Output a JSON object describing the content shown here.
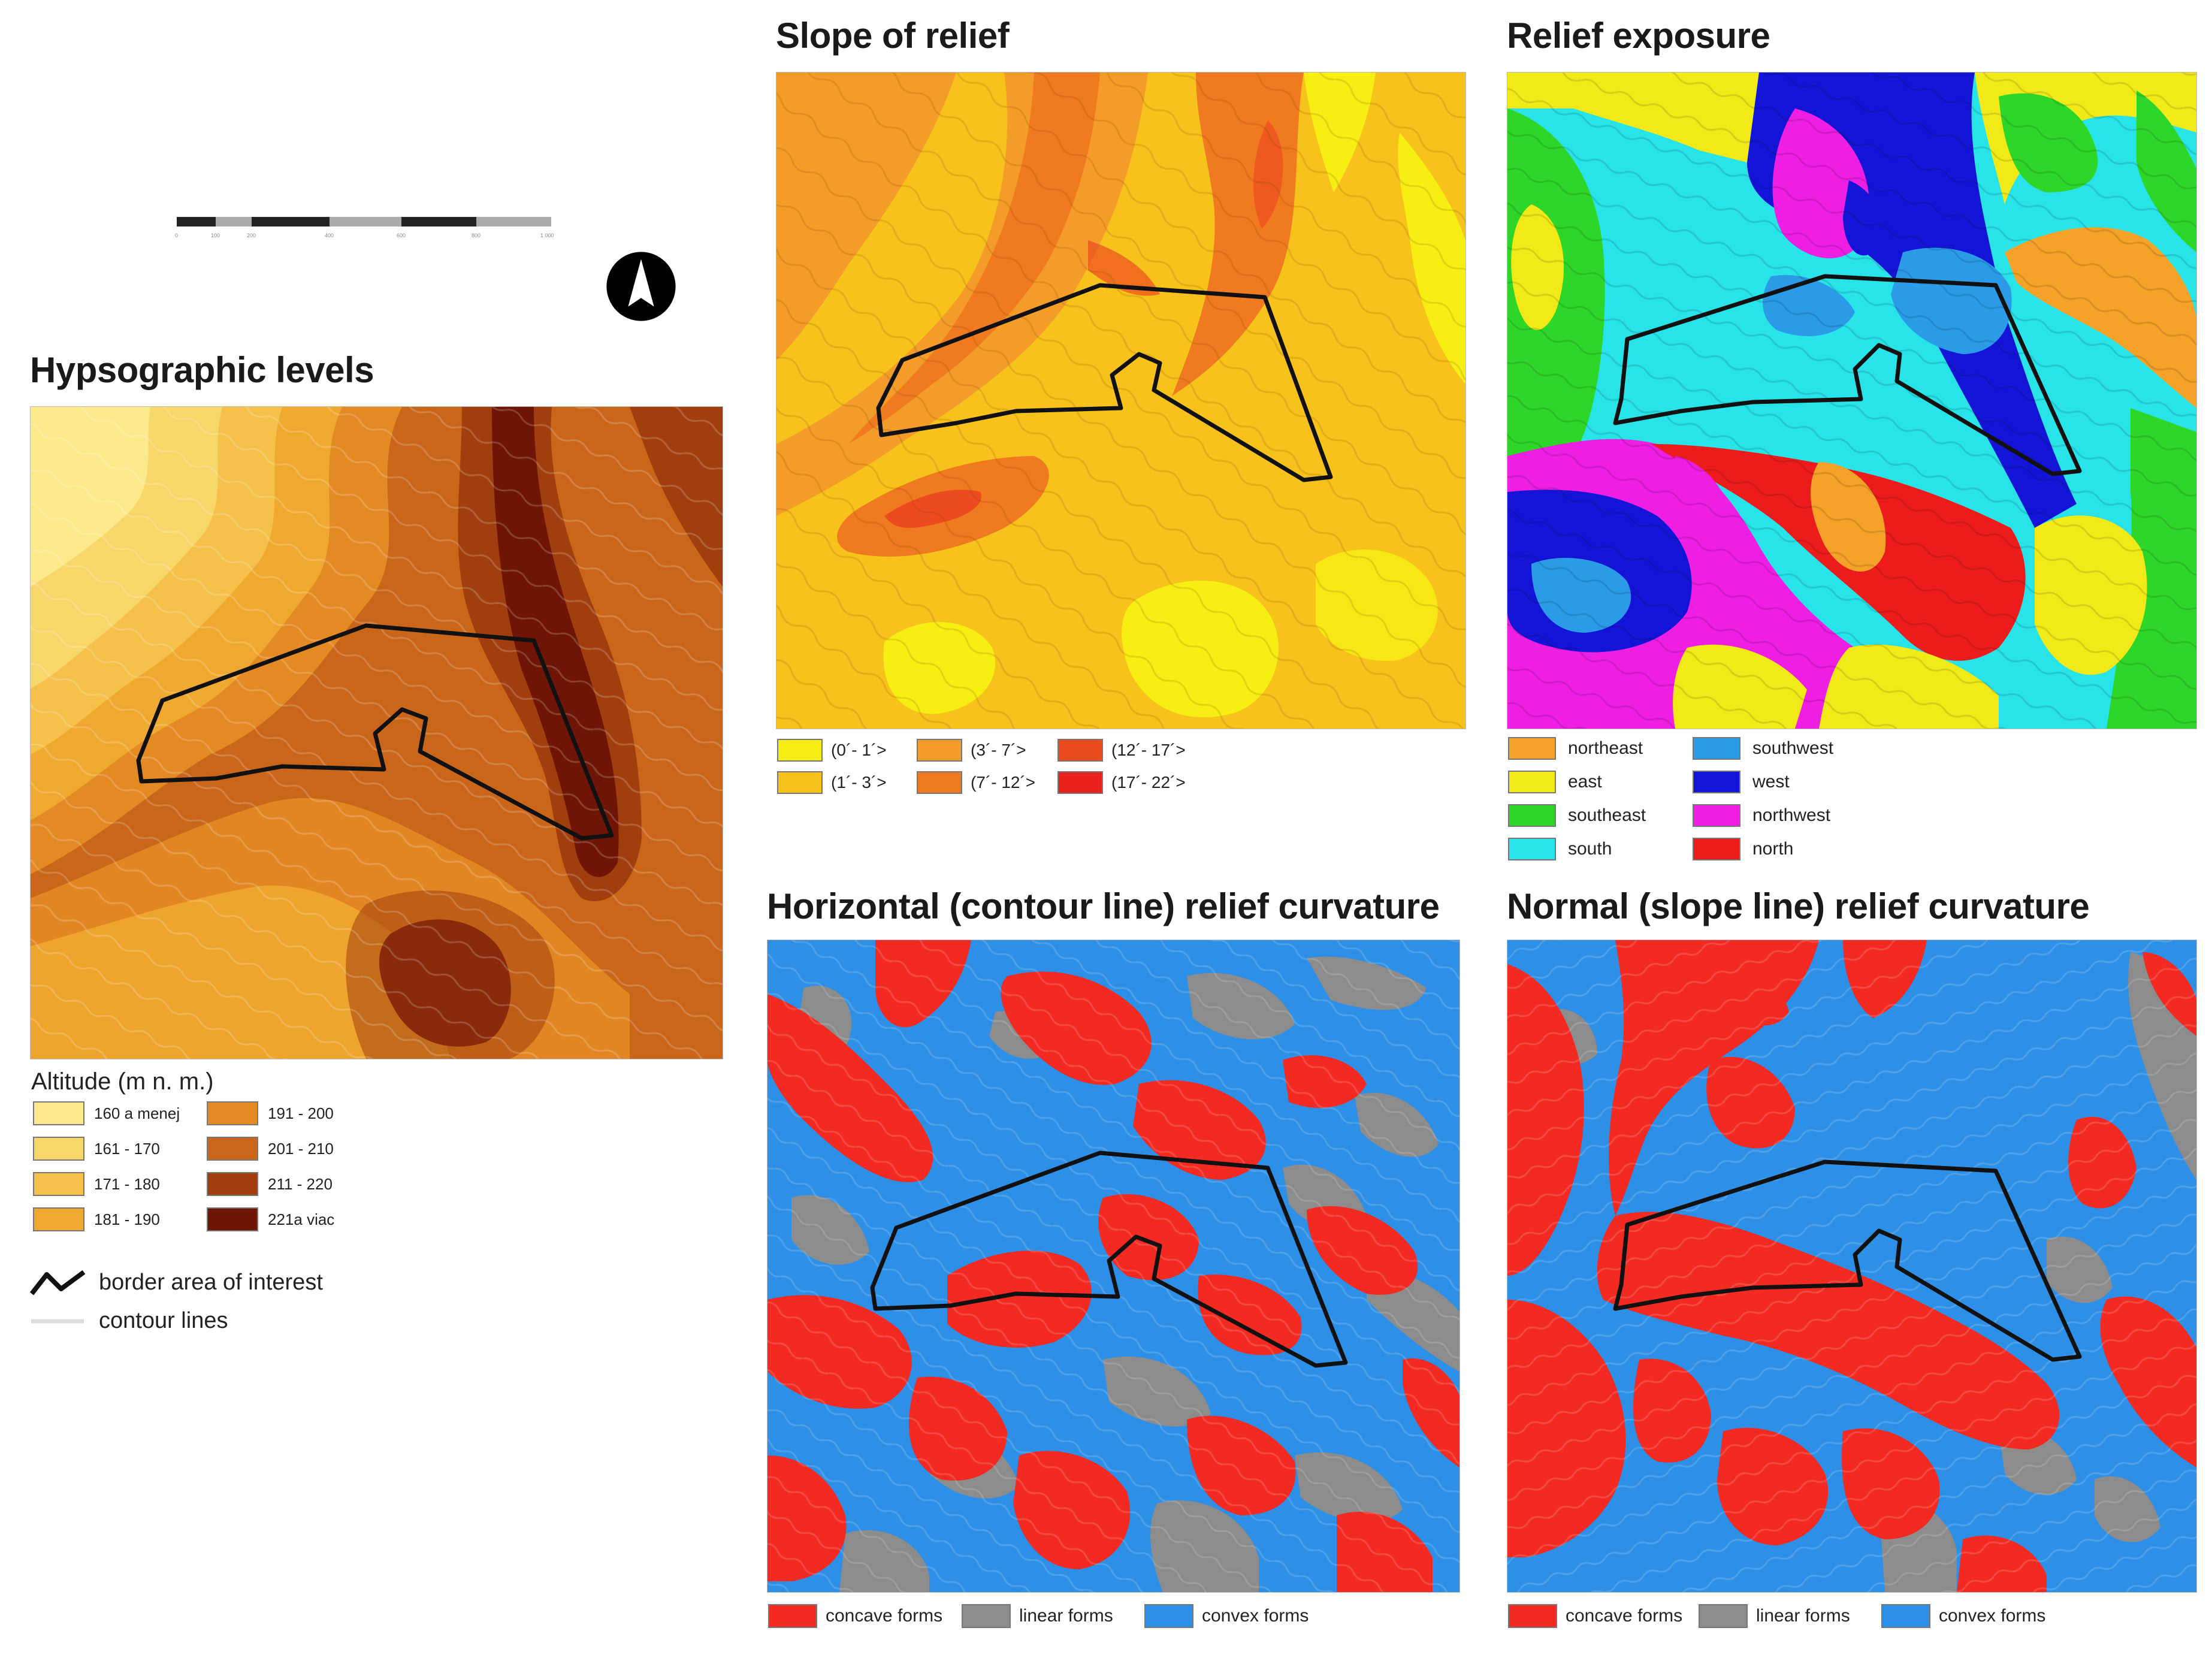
{
  "scale_bar": {
    "tick_labels": [
      "0",
      "100",
      "200",
      "400",
      "600",
      "800",
      "1 000"
    ],
    "colors": [
      "#222222",
      "#aaaaaa"
    ]
  },
  "north_arrow": {
    "icon": "north-arrow-icon"
  },
  "panels": {
    "hypsographic": {
      "title": "Hypsographic levels",
      "legend_title": "Altitude (m n. m.)",
      "classes": [
        {
          "label": "160 a menej",
          "color": "#fbe98b"
        },
        {
          "label": "161 - 170",
          "color": "#f8d76a"
        },
        {
          "label": "171 - 180",
          "color": "#f5c14b"
        },
        {
          "label": "181 - 190",
          "color": "#f0a930"
        },
        {
          "label": "191 - 200",
          "color": "#e48a25"
        },
        {
          "label": "201 - 210",
          "color": "#c9661a"
        },
        {
          "label": "211 - 220",
          "color": "#a03e0e"
        },
        {
          "label": "221a viac",
          "color": "#6e1505"
        }
      ],
      "extra_legend": [
        {
          "label": "border area of interest",
          "icon": "border-line-icon",
          "color": "#111111"
        },
        {
          "label": "contour lines",
          "icon": "contour-line-icon",
          "color": "#dddddd"
        }
      ]
    },
    "slope": {
      "title": "Slope of relief",
      "classes": [
        {
          "label": "(0´- 1´>",
          "color": "#f7ef14"
        },
        {
          "label": "(1´- 3´>",
          "color": "#f7c21c"
        },
        {
          "label": "(3´- 7´>",
          "color": "#f39c2a"
        },
        {
          "label": "(7´- 12´>",
          "color": "#ef7a1f"
        },
        {
          "label": "(12´- 17´>",
          "color": "#ec4b20"
        },
        {
          "label": "(17´- 22´>",
          "color": "#e8221a"
        }
      ]
    },
    "exposure": {
      "title": "Relief exposure",
      "classes": [
        {
          "label": "northeast",
          "color": "#f5a228"
        },
        {
          "label": "east",
          "color": "#f2ea18"
        },
        {
          "label": "southeast",
          "color": "#2fd62a"
        },
        {
          "label": "south",
          "color": "#28e3e8"
        },
        {
          "label": "southwest",
          "color": "#2b9be8"
        },
        {
          "label": "west",
          "color": "#1414d6"
        },
        {
          "label": "northwest",
          "color": "#ee1ee2"
        },
        {
          "label": "north",
          "color": "#ec1c1c"
        }
      ]
    },
    "horizontal_curvature": {
      "title": "Horizontal (contour line) relief curvature",
      "classes": [
        {
          "label": "concave forms",
          "color": "#f22a22"
        },
        {
          "label": "linear forms",
          "color": "#8c8c8c"
        },
        {
          "label": "convex forms",
          "color": "#2e8fe6"
        }
      ]
    },
    "normal_curvature": {
      "title": "Normal (slope line) relief curvature",
      "classes": [
        {
          "label": "concave forms",
          "color": "#f22a22"
        },
        {
          "label": "linear forms",
          "color": "#8c8c8c"
        },
        {
          "label": "convex forms",
          "color": "#2e8fe6"
        }
      ]
    }
  }
}
